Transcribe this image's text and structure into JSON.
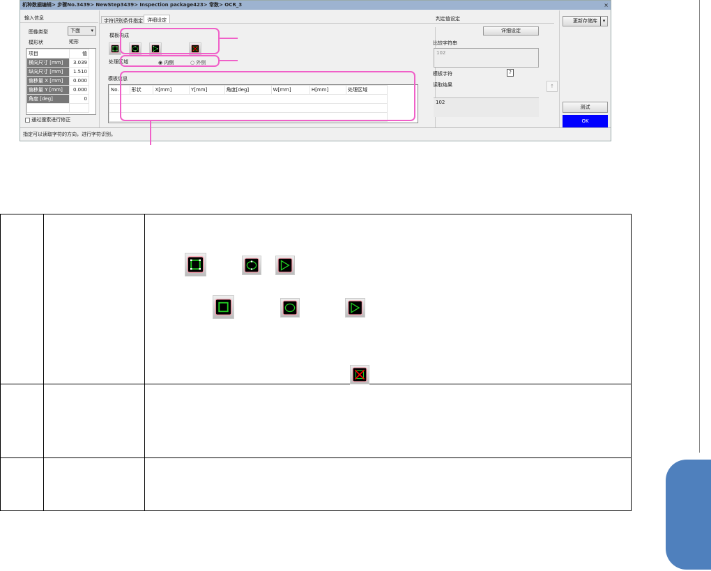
{
  "dialog": {
    "title": "机种数据编辑> 步骤No.3439> NewStep3439> Inspection package423> 常数> OCR_3",
    "close": "×",
    "left": {
      "header": "输入信息",
      "image_type_label": "图像类型",
      "image_type_value": "下面",
      "shape_label": "模形状",
      "shape_value": "矩形",
      "table": {
        "headers": [
          "项目",
          "值"
        ],
        "rows": [
          [
            "横向尺寸 [mm]",
            "3.039"
          ],
          [
            "纵向尺寸 [mm]",
            "1.510"
          ],
          [
            "偏移量 X [mm]",
            "0.000"
          ],
          [
            "偏移量 Y [mm]",
            "0.000"
          ],
          [
            "角度 [deg]",
            "0"
          ]
        ]
      },
      "checkbox": "通过搜索进行修正"
    },
    "tabs": [
      "字符识别条件指定",
      "详细设定"
    ],
    "middle": {
      "template_compose": "模板构成",
      "process_area": "处理区域",
      "radio_inner": "内侧",
      "radio_outer": "外侧",
      "template_info": "模板信息",
      "columns": [
        "No.",
        "形状",
        "X[mm]",
        "Y[mm]",
        "角度[deg]",
        "W[mm]",
        "H[mm]",
        "处理区域"
      ]
    },
    "right": {
      "header": "判定值设定",
      "detail_button": "详细设定",
      "compare_label": "比较字符串",
      "compare_value": "102",
      "template_char": "模板字符",
      "template_char_btn": "?",
      "read_result": "读取结果",
      "read_btn": "↑",
      "result_value": "102"
    },
    "far_right": {
      "update_button": "更新存储库",
      "test_button": "测试",
      "ok_button": "OK"
    },
    "status": "指定可以读取字符的方向，进行字符识别。"
  },
  "icons": [
    "rectangle-shape-icon",
    "ellipse-shape-icon",
    "polygon-shape-icon",
    "delete-shape-icon"
  ],
  "colors": {
    "annotation": "#f060c8",
    "ok": "#0000ff",
    "side_tab": "#4f80bd"
  }
}
